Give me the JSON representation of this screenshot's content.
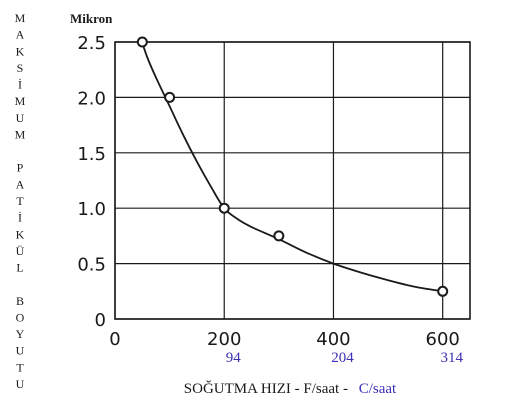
{
  "chart_data": {
    "type": "scatter",
    "y_unit_label": "Mikron",
    "ylabel_letters": [
      "M",
      "A",
      "K",
      "S",
      "İ",
      "M",
      "U",
      "M",
      "",
      "P",
      "A",
      "T",
      "İ",
      "K",
      "Ü",
      "L",
      "",
      "B",
      "O",
      "Y",
      "U",
      "T",
      "U"
    ],
    "xlabel": {
      "main": "SOĞUTMA HIZI - F/saat -",
      "alt": "C/saat"
    },
    "xlim": [
      0,
      650
    ],
    "ylim": [
      0,
      2.5
    ],
    "x_ticks": [
      0,
      200,
      400,
      600
    ],
    "x_tick_labels": [
      "0",
      "200",
      "400",
      "600"
    ],
    "y_ticks": [
      0,
      0.5,
      1.0,
      1.5,
      2.0,
      2.5
    ],
    "y_tick_labels": [
      "0",
      "0.5",
      "1.0",
      "1.5",
      "2.0",
      "2.5"
    ],
    "x_grid": [
      0,
      200,
      400,
      600
    ],
    "y_grid": [
      0,
      0.5,
      1.0,
      1.5,
      2.0,
      2.5
    ],
    "secondary_x_ticks": [
      {
        "x": 200,
        "label": "94"
      },
      {
        "x": 400,
        "label": "204"
      },
      {
        "x": 600,
        "label": "314"
      }
    ],
    "grid": true,
    "series": [
      {
        "points": [
          {
            "x": 50,
            "y": 2.5
          },
          {
            "x": 100,
            "y": 2.0
          },
          {
            "x": 200,
            "y": 1.0
          },
          {
            "x": 300,
            "y": 0.75
          },
          {
            "x": 600,
            "y": 0.25
          }
        ]
      }
    ],
    "fit_curve": [
      {
        "x": 48,
        "y": 2.52
      },
      {
        "x": 60,
        "y": 2.35
      },
      {
        "x": 75,
        "y": 2.18
      },
      {
        "x": 100,
        "y": 1.92
      },
      {
        "x": 125,
        "y": 1.66
      },
      {
        "x": 150,
        "y": 1.42
      },
      {
        "x": 175,
        "y": 1.2
      },
      {
        "x": 200,
        "y": 1.0
      },
      {
        "x": 225,
        "y": 0.9
      },
      {
        "x": 250,
        "y": 0.83
      },
      {
        "x": 300,
        "y": 0.72
      },
      {
        "x": 350,
        "y": 0.6
      },
      {
        "x": 400,
        "y": 0.5
      },
      {
        "x": 450,
        "y": 0.42
      },
      {
        "x": 500,
        "y": 0.35
      },
      {
        "x": 550,
        "y": 0.29
      },
      {
        "x": 600,
        "y": 0.25
      }
    ],
    "colors": {
      "ink": "#1a1a1a",
      "secondary": "#3a2fb5"
    }
  }
}
